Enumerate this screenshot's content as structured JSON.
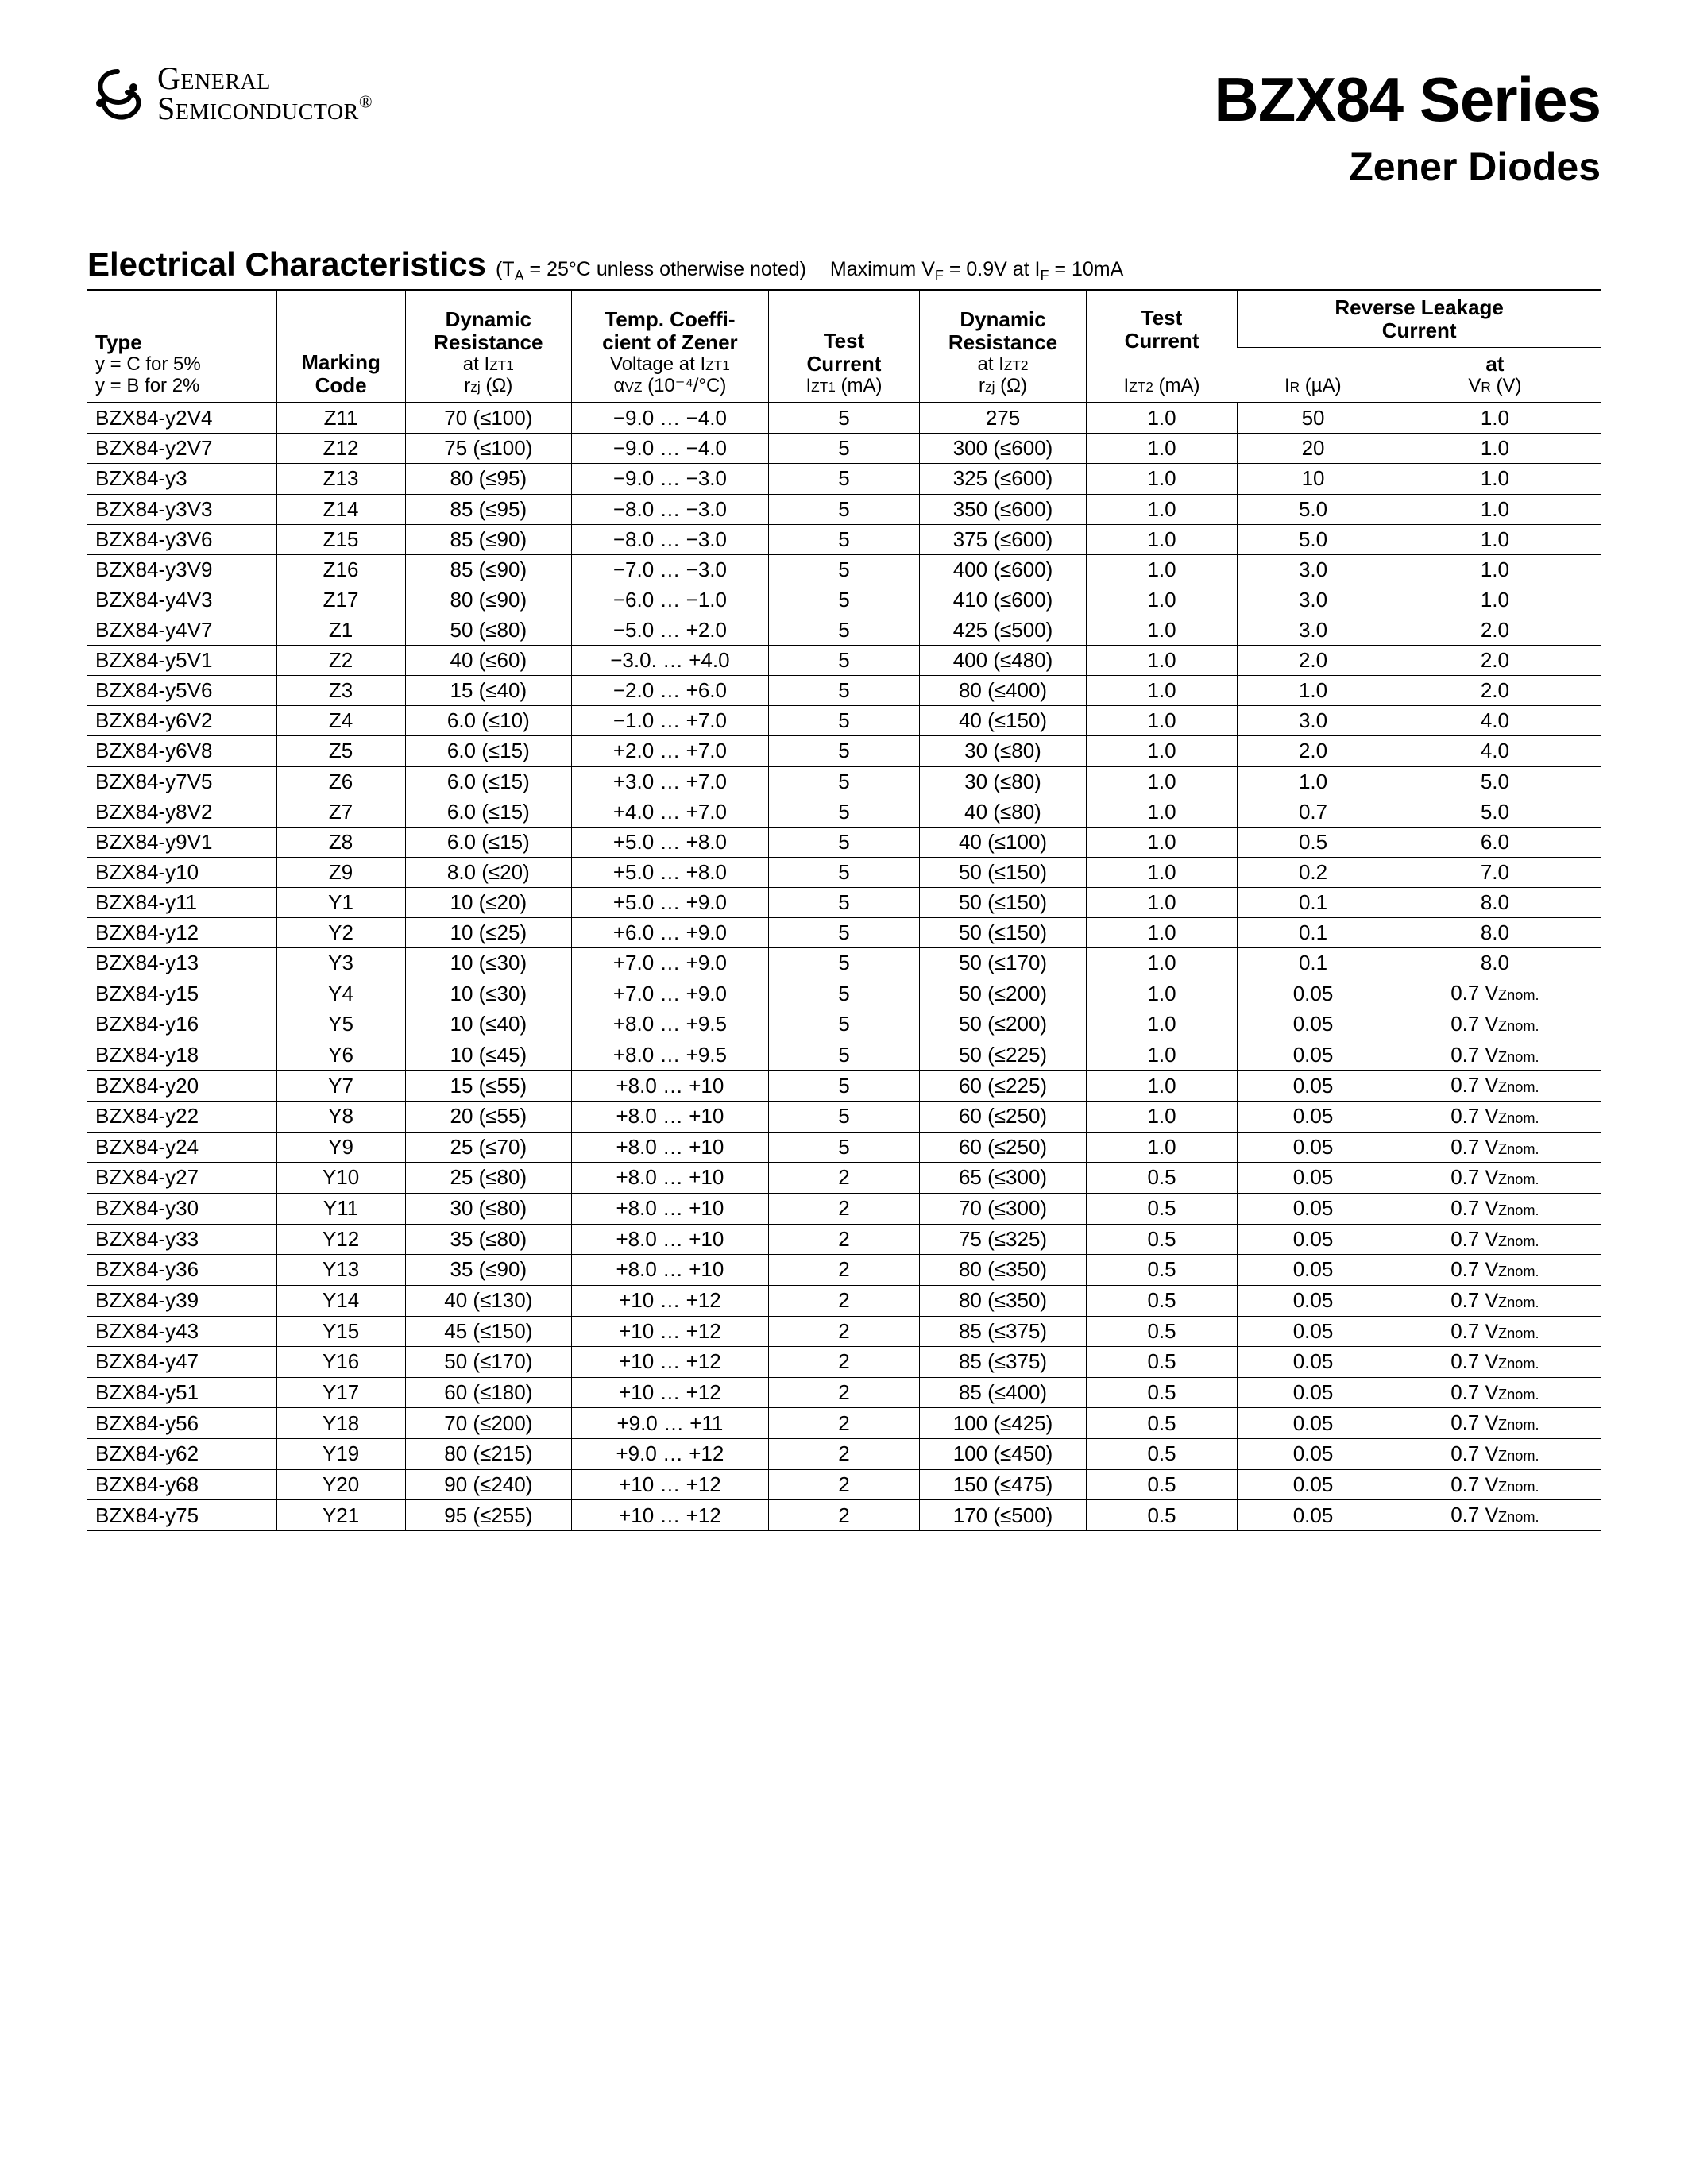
{
  "brand": {
    "line1": "General",
    "line2": "Semiconductor",
    "reg": "®"
  },
  "title": "BZX84 Series",
  "subtitle": "Zener Diodes",
  "section": {
    "title": "Electrical Characteristics",
    "cond_prefix": "(T",
    "cond_sub": "A",
    "cond_rest": " = 25°C unless otherwise noted)",
    "max_label": "Maximum V",
    "max_sub1": "F",
    "max_mid": " = 0.9V at I",
    "max_sub2": "F",
    "max_end": " = 10mA"
  },
  "head": {
    "type_label": "Type",
    "type_sub1": "y = C for 5%",
    "type_sub2": "y = B for 2%",
    "marking": "Marking",
    "marking2": "Code",
    "dr1_l1": "Dynamic",
    "dr1_l2": "Resistance",
    "dr1_l3_pre": "at I",
    "dr1_l3_sub": "ZT1",
    "dr1_l4_pre": "r",
    "dr1_l4_sub": "zj",
    "dr1_l4_post": " (Ω)",
    "tc_l1": "Temp. Coeffi-",
    "tc_l2": "cient of Zener",
    "tc_l3_pre": "Voltage at I",
    "tc_l3_sub": "ZT1",
    "tc_l4_pre": "α",
    "tc_l4_sub": "VZ",
    "tc_l4_post": " (10⁻⁴/°C)",
    "tcur_l1": "Test",
    "tcur_l2": "Current",
    "tcur_l3_pre": "I",
    "tcur_l3_sub": "ZT1",
    "tcur_l3_post": " (mA)",
    "dr2_l1": "Dynamic",
    "dr2_l2": "Resistance",
    "dr2_l3_pre": "at I",
    "dr2_l3_sub": "ZT2",
    "dr2_l4_pre": "r",
    "dr2_l4_sub": "zj",
    "dr2_l4_post": " (Ω)",
    "tc2_l1": "Test",
    "tc2_l2": "Current",
    "tc2_l3_pre": "I",
    "tc2_l3_sub": "ZT2",
    "tc2_l3_post": " (mA)",
    "rl_top_l1": "Reverse Leakage",
    "rl_top_l2": "Current",
    "ir_pre": "I",
    "ir_sub": "R",
    "ir_post": " (µA)",
    "vr_l1": "at",
    "vr_pre": "V",
    "vr_sub": "R",
    "vr_post": " (V)"
  },
  "vznom_label": {
    "num": "0.7 ",
    "v": "V",
    "z": "Znom."
  },
  "rows": [
    {
      "type": "BZX84-y2V4",
      "mark": "Z11",
      "dr1": "70 (≤100)",
      "tc": "−9.0 … −4.0",
      "tcur": "5",
      "dr2": "275",
      "tc2": "1.0",
      "ir": "50",
      "vr": "1.0"
    },
    {
      "type": "BZX84-y2V7",
      "mark": "Z12",
      "dr1": "75 (≤100)",
      "tc": "−9.0 … −4.0",
      "tcur": "5",
      "dr2": "300 (≤600)",
      "tc2": "1.0",
      "ir": "20",
      "vr": "1.0"
    },
    {
      "type": "BZX84-y3",
      "mark": "Z13",
      "dr1": "80 (≤95)",
      "tc": "−9.0 … −3.0",
      "tcur": "5",
      "dr2": "325 (≤600)",
      "tc2": "1.0",
      "ir": "10",
      "vr": "1.0"
    },
    {
      "type": "BZX84-y3V3",
      "mark": "Z14",
      "dr1": "85 (≤95)",
      "tc": "−8.0 … −3.0",
      "tcur": "5",
      "dr2": "350 (≤600)",
      "tc2": "1.0",
      "ir": "5.0",
      "vr": "1.0"
    },
    {
      "type": "BZX84-y3V6",
      "mark": "Z15",
      "dr1": "85 (≤90)",
      "tc": "−8.0 … −3.0",
      "tcur": "5",
      "dr2": "375 (≤600)",
      "tc2": "1.0",
      "ir": "5.0",
      "vr": "1.0"
    },
    {
      "type": "BZX84-y3V9",
      "mark": "Z16",
      "dr1": "85 (≤90)",
      "tc": "−7.0 … −3.0",
      "tcur": "5",
      "dr2": "400 (≤600)",
      "tc2": "1.0",
      "ir": "3.0",
      "vr": "1.0"
    },
    {
      "type": "BZX84-y4V3",
      "mark": "Z17",
      "dr1": "80 (≤90)",
      "tc": "−6.0 … −1.0",
      "tcur": "5",
      "dr2": "410 (≤600)",
      "tc2": "1.0",
      "ir": "3.0",
      "vr": "1.0"
    },
    {
      "type": "BZX84-y4V7",
      "mark": "Z1",
      "dr1": "50 (≤80)",
      "tc": "−5.0 … +2.0",
      "tcur": "5",
      "dr2": "425 (≤500)",
      "tc2": "1.0",
      "ir": "3.0",
      "vr": "2.0"
    },
    {
      "type": "BZX84-y5V1",
      "mark": "Z2",
      "dr1": "40 (≤60)",
      "tc": "−3.0. … +4.0",
      "tcur": "5",
      "dr2": "400 (≤480)",
      "tc2": "1.0",
      "ir": "2.0",
      "vr": "2.0"
    },
    {
      "type": "BZX84-y5V6",
      "mark": "Z3",
      "dr1": "15 (≤40)",
      "tc": "−2.0 … +6.0",
      "tcur": "5",
      "dr2": "80 (≤400)",
      "tc2": "1.0",
      "ir": "1.0",
      "vr": "2.0"
    },
    {
      "type": "BZX84-y6V2",
      "mark": "Z4",
      "dr1": "6.0 (≤10)",
      "tc": "−1.0 … +7.0",
      "tcur": "5",
      "dr2": "40 (≤150)",
      "tc2": "1.0",
      "ir": "3.0",
      "vr": "4.0"
    },
    {
      "type": "BZX84-y6V8",
      "mark": "Z5",
      "dr1": "6.0 (≤15)",
      "tc": "+2.0 … +7.0",
      "tcur": "5",
      "dr2": "30 (≤80)",
      "tc2": "1.0",
      "ir": "2.0",
      "vr": "4.0"
    },
    {
      "type": "BZX84-y7V5",
      "mark": "Z6",
      "dr1": "6.0 (≤15)",
      "tc": "+3.0 … +7.0",
      "tcur": "5",
      "dr2": "30 (≤80)",
      "tc2": "1.0",
      "ir": "1.0",
      "vr": "5.0"
    },
    {
      "type": "BZX84-y8V2",
      "mark": "Z7",
      "dr1": "6.0 (≤15)",
      "tc": "+4.0 … +7.0",
      "tcur": "5",
      "dr2": "40 (≤80)",
      "tc2": "1.0",
      "ir": "0.7",
      "vr": "5.0"
    },
    {
      "type": "BZX84-y9V1",
      "mark": "Z8",
      "dr1": "6.0 (≤15)",
      "tc": "+5.0 … +8.0",
      "tcur": "5",
      "dr2": "40 (≤100)",
      "tc2": "1.0",
      "ir": "0.5",
      "vr": "6.0"
    },
    {
      "type": "BZX84-y10",
      "mark": "Z9",
      "dr1": "8.0 (≤20)",
      "tc": "+5.0 … +8.0",
      "tcur": "5",
      "dr2": "50 (≤150)",
      "tc2": "1.0",
      "ir": "0.2",
      "vr": "7.0"
    },
    {
      "type": "BZX84-y11",
      "mark": "Y1",
      "dr1": "10 (≤20)",
      "tc": "+5.0 … +9.0",
      "tcur": "5",
      "dr2": "50 (≤150)",
      "tc2": "1.0",
      "ir": "0.1",
      "vr": "8.0"
    },
    {
      "type": "BZX84-y12",
      "mark": "Y2",
      "dr1": "10 (≤25)",
      "tc": "+6.0 … +9.0",
      "tcur": "5",
      "dr2": "50 (≤150)",
      "tc2": "1.0",
      "ir": "0.1",
      "vr": "8.0"
    },
    {
      "type": "BZX84-y13",
      "mark": "Y3",
      "dr1": "10 (≤30)",
      "tc": "+7.0 … +9.0",
      "tcur": "5",
      "dr2": "50 (≤170)",
      "tc2": "1.0",
      "ir": "0.1",
      "vr": "8.0"
    },
    {
      "type": "BZX84-y15",
      "mark": "Y4",
      "dr1": "10 (≤30)",
      "tc": "+7.0 … +9.0",
      "tcur": "5",
      "dr2": "50 (≤200)",
      "tc2": "1.0",
      "ir": "0.05",
      "vr": "VZNOM"
    },
    {
      "type": "BZX84-y16",
      "mark": "Y5",
      "dr1": "10 (≤40)",
      "tc": "+8.0 … +9.5",
      "tcur": "5",
      "dr2": "50 (≤200)",
      "tc2": "1.0",
      "ir": "0.05",
      "vr": "VZNOM"
    },
    {
      "type": "BZX84-y18",
      "mark": "Y6",
      "dr1": "10 (≤45)",
      "tc": "+8.0 … +9.5",
      "tcur": "5",
      "dr2": "50 (≤225)",
      "tc2": "1.0",
      "ir": "0.05",
      "vr": "VZNOM"
    },
    {
      "type": "BZX84-y20",
      "mark": "Y7",
      "dr1": "15 (≤55)",
      "tc": "+8.0 … +10",
      "tcur": "5",
      "dr2": "60 (≤225)",
      "tc2": "1.0",
      "ir": "0.05",
      "vr": "VZNOM"
    },
    {
      "type": "BZX84-y22",
      "mark": "Y8",
      "dr1": "20 (≤55)",
      "tc": "+8.0 … +10",
      "tcur": "5",
      "dr2": "60 (≤250)",
      "tc2": "1.0",
      "ir": "0.05",
      "vr": "VZNOM"
    },
    {
      "type": "BZX84-y24",
      "mark": "Y9",
      "dr1": "25 (≤70)",
      "tc": "+8.0 … +10",
      "tcur": "5",
      "dr2": "60 (≤250)",
      "tc2": "1.0",
      "ir": "0.05",
      "vr": "VZNOM"
    },
    {
      "type": "BZX84-y27",
      "mark": "Y10",
      "dr1": "25 (≤80)",
      "tc": "+8.0 … +10",
      "tcur": "2",
      "dr2": "65 (≤300)",
      "tc2": "0.5",
      "ir": "0.05",
      "vr": "VZNOM"
    },
    {
      "type": "BZX84-y30",
      "mark": "Y11",
      "dr1": "30 (≤80)",
      "tc": "+8.0 … +10",
      "tcur": "2",
      "dr2": "70 (≤300)",
      "tc2": "0.5",
      "ir": "0.05",
      "vr": "VZNOM"
    },
    {
      "type": "BZX84-y33",
      "mark": "Y12",
      "dr1": "35 (≤80)",
      "tc": "+8.0 … +10",
      "tcur": "2",
      "dr2": "75 (≤325)",
      "tc2": "0.5",
      "ir": "0.05",
      "vr": "VZNOM"
    },
    {
      "type": "BZX84-y36",
      "mark": "Y13",
      "dr1": "35 (≤90)",
      "tc": "+8.0 … +10",
      "tcur": "2",
      "dr2": "80 (≤350)",
      "tc2": "0.5",
      "ir": "0.05",
      "vr": "VZNOM"
    },
    {
      "type": "BZX84-y39",
      "mark": "Y14",
      "dr1": "40 (≤130)",
      "tc": "+10 … +12",
      "tcur": "2",
      "dr2": "80 (≤350)",
      "tc2": "0.5",
      "ir": "0.05",
      "vr": "VZNOM"
    },
    {
      "type": "BZX84-y43",
      "mark": "Y15",
      "dr1": "45 (≤150)",
      "tc": "+10 … +12",
      "tcur": "2",
      "dr2": "85 (≤375)",
      "tc2": "0.5",
      "ir": "0.05",
      "vr": "VZNOM"
    },
    {
      "type": "BZX84-y47",
      "mark": "Y16",
      "dr1": "50 (≤170)",
      "tc": "+10 … +12",
      "tcur": "2",
      "dr2": "85 (≤375)",
      "tc2": "0.5",
      "ir": "0.05",
      "vr": "VZNOM"
    },
    {
      "type": "BZX84-y51",
      "mark": "Y17",
      "dr1": "60 (≤180)",
      "tc": "+10 … +12",
      "tcur": "2",
      "dr2": "85 (≤400)",
      "tc2": "0.5",
      "ir": "0.05",
      "vr": "VZNOM"
    },
    {
      "type": "BZX84-y56",
      "mark": "Y18",
      "dr1": "70 (≤200)",
      "tc": "+9.0 … +11",
      "tcur": "2",
      "dr2": "100 (≤425)",
      "tc2": "0.5",
      "ir": "0.05",
      "vr": "VZNOM"
    },
    {
      "type": "BZX84-y62",
      "mark": "Y19",
      "dr1": "80 (≤215)",
      "tc": "+9.0 … +12",
      "tcur": "2",
      "dr2": "100 (≤450)",
      "tc2": "0.5",
      "ir": "0.05",
      "vr": "VZNOM"
    },
    {
      "type": "BZX84-y68",
      "mark": "Y20",
      "dr1": "90 (≤240)",
      "tc": "+10 … +12",
      "tcur": "2",
      "dr2": "150 (≤475)",
      "tc2": "0.5",
      "ir": "0.05",
      "vr": "VZNOM"
    },
    {
      "type": "BZX84-y75",
      "mark": "Y21",
      "dr1": "95 (≤255)",
      "tc": "+10 … +12",
      "tcur": "2",
      "dr2": "170 (≤500)",
      "tc2": "0.5",
      "ir": "0.05",
      "vr": "VZNOM"
    }
  ]
}
